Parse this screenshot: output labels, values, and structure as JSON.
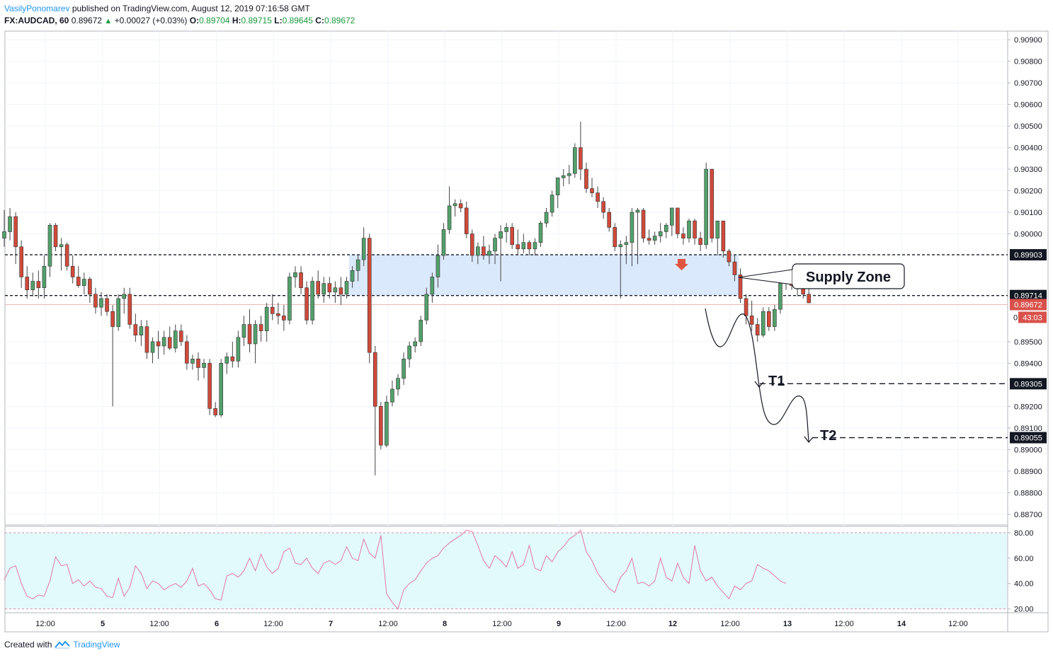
{
  "header": {
    "author": "VasilyPonomarev",
    "published": "published on TradingView.com, August 12, 2019 07:16:58 GMT",
    "symbol": "FX:AUDCAD, 60",
    "last": "0.89672",
    "change": "+0.00027 (+0.03%)",
    "o_label": "O:",
    "o": "0.89704",
    "h_label": "H:",
    "h": "0.89715",
    "l_label": "L:",
    "l": "0.89645",
    "c_label": "C:",
    "c": "0.89672"
  },
  "footer": {
    "created": "Created with",
    "brand": "TradingView"
  },
  "colors": {
    "up": "#53a06b",
    "down": "#d04a3b",
    "zone": "#dbe9fd",
    "rsi_bg": "#e3fafb",
    "rsi_line": "#e07aa0",
    "accent": "#2196f3"
  },
  "chart_data": [
    {
      "type": "candlestick",
      "symbol": "FX:AUDCAD",
      "interval": "60",
      "ylim": [
        0.8865,
        0.9094
      ],
      "y_ticks": [
        "0.90900",
        "0.90800",
        "0.90700",
        "0.90600",
        "0.90500",
        "0.90400",
        "0.90300",
        "0.90200",
        "0.90100",
        "0.90000",
        "0.89500",
        "0.89400",
        "0.89200",
        "0.89100",
        "0.89000",
        "0.88900",
        "0.88800",
        "0.88700"
      ],
      "x_ticks": [
        "12:00",
        "5",
        "12:00",
        "6",
        "12:00",
        "7",
        "12:00",
        "8",
        "12:00",
        "9",
        "12:00",
        "12",
        "12:00",
        "13",
        "12:00",
        "14",
        "12:00"
      ],
      "price_labels": [
        {
          "value": "0.89903",
          "style": "black"
        },
        {
          "value": "0.89714",
          "style": "black"
        },
        {
          "value": "0.89672",
          "style": "red"
        },
        {
          "value": "43:03",
          "style": "red",
          "prefix": "0"
        },
        {
          "value": "0.89305",
          "style": "black"
        },
        {
          "value": "0.89055",
          "style": "black"
        }
      ],
      "levels": [
        0.89903,
        0.89714,
        0.89305,
        0.89055
      ],
      "supply_zone": {
        "from": 0.89714,
        "to": 0.89903
      },
      "annotations": [
        "Supply Zone",
        "T1",
        "T2"
      ],
      "series": [
        {
          "o": 0.8998,
          "h": 0.9011,
          "l": 0.8994,
          "c": 0.9001
        },
        {
          "o": 0.9001,
          "h": 0.9012,
          "l": 0.8997,
          "c": 0.9008
        },
        {
          "o": 0.9008,
          "h": 0.901,
          "l": 0.8986,
          "c": 0.8994
        },
        {
          "o": 0.8994,
          "h": 0.8997,
          "l": 0.8975,
          "c": 0.898
        },
        {
          "o": 0.898,
          "h": 0.8985,
          "l": 0.897,
          "c": 0.8974
        },
        {
          "o": 0.8974,
          "h": 0.8982,
          "l": 0.8971,
          "c": 0.8978
        },
        {
          "o": 0.8978,
          "h": 0.8983,
          "l": 0.897,
          "c": 0.8975
        },
        {
          "o": 0.8975,
          "h": 0.899,
          "l": 0.897,
          "c": 0.8985
        },
        {
          "o": 0.8985,
          "h": 0.9005,
          "l": 0.898,
          "c": 0.9004
        },
        {
          "o": 0.9004,
          "h": 0.9005,
          "l": 0.8992,
          "c": 0.8994
        },
        {
          "o": 0.8994,
          "h": 0.8998,
          "l": 0.8983,
          "c": 0.8995
        },
        {
          "o": 0.8995,
          "h": 0.8996,
          "l": 0.8983,
          "c": 0.8985
        },
        {
          "o": 0.8985,
          "h": 0.899,
          "l": 0.8977,
          "c": 0.898
        },
        {
          "o": 0.898,
          "h": 0.8985,
          "l": 0.8975,
          "c": 0.8976
        },
        {
          "o": 0.8976,
          "h": 0.8982,
          "l": 0.8972,
          "c": 0.8979
        },
        {
          "o": 0.8979,
          "h": 0.898,
          "l": 0.8968,
          "c": 0.8972
        },
        {
          "o": 0.8972,
          "h": 0.8975,
          "l": 0.8963,
          "c": 0.8966
        },
        {
          "o": 0.8966,
          "h": 0.8973,
          "l": 0.8962,
          "c": 0.897
        },
        {
          "o": 0.897,
          "h": 0.8972,
          "l": 0.8962,
          "c": 0.8964
        },
        {
          "o": 0.8964,
          "h": 0.8967,
          "l": 0.892,
          "c": 0.8957
        },
        {
          "o": 0.8957,
          "h": 0.8972,
          "l": 0.8955,
          "c": 0.897
        },
        {
          "o": 0.897,
          "h": 0.8975,
          "l": 0.8963,
          "c": 0.8972
        },
        {
          "o": 0.8972,
          "h": 0.8975,
          "l": 0.8956,
          "c": 0.8958
        },
        {
          "o": 0.8958,
          "h": 0.8963,
          "l": 0.895,
          "c": 0.8953
        },
        {
          "o": 0.8953,
          "h": 0.896,
          "l": 0.8948,
          "c": 0.8957
        },
        {
          "o": 0.8957,
          "h": 0.896,
          "l": 0.8942,
          "c": 0.8945
        },
        {
          "o": 0.8945,
          "h": 0.8952,
          "l": 0.894,
          "c": 0.895
        },
        {
          "o": 0.895,
          "h": 0.8955,
          "l": 0.8942,
          "c": 0.8948
        },
        {
          "o": 0.8948,
          "h": 0.8955,
          "l": 0.8944,
          "c": 0.8952
        },
        {
          "o": 0.8952,
          "h": 0.8957,
          "l": 0.8946,
          "c": 0.8947
        },
        {
          "o": 0.8947,
          "h": 0.8958,
          "l": 0.8945,
          "c": 0.8955
        },
        {
          "o": 0.8955,
          "h": 0.8958,
          "l": 0.8948,
          "c": 0.895
        },
        {
          "o": 0.895,
          "h": 0.8953,
          "l": 0.8937,
          "c": 0.894
        },
        {
          "o": 0.894,
          "h": 0.8944,
          "l": 0.8937,
          "c": 0.8942
        },
        {
          "o": 0.8942,
          "h": 0.8945,
          "l": 0.8932,
          "c": 0.8938
        },
        {
          "o": 0.8938,
          "h": 0.8942,
          "l": 0.8933,
          "c": 0.894
        },
        {
          "o": 0.894,
          "h": 0.8942,
          "l": 0.8916,
          "c": 0.8919
        },
        {
          "o": 0.8919,
          "h": 0.8922,
          "l": 0.8915,
          "c": 0.8916
        },
        {
          "o": 0.8916,
          "h": 0.8942,
          "l": 0.8915,
          "c": 0.894
        },
        {
          "o": 0.894,
          "h": 0.8945,
          "l": 0.8935,
          "c": 0.8943
        },
        {
          "o": 0.8943,
          "h": 0.895,
          "l": 0.8938,
          "c": 0.8941
        },
        {
          "o": 0.8941,
          "h": 0.8955,
          "l": 0.8938,
          "c": 0.8952
        },
        {
          "o": 0.8952,
          "h": 0.8962,
          "l": 0.8948,
          "c": 0.8958
        },
        {
          "o": 0.8958,
          "h": 0.8965,
          "l": 0.8945,
          "c": 0.8949
        },
        {
          "o": 0.8949,
          "h": 0.896,
          "l": 0.894,
          "c": 0.8958
        },
        {
          "o": 0.8958,
          "h": 0.8962,
          "l": 0.895,
          "c": 0.8955
        },
        {
          "o": 0.8955,
          "h": 0.8968,
          "l": 0.895,
          "c": 0.8966
        },
        {
          "o": 0.8966,
          "h": 0.8972,
          "l": 0.896,
          "c": 0.8963
        },
        {
          "o": 0.8963,
          "h": 0.8968,
          "l": 0.8958,
          "c": 0.8962
        },
        {
          "o": 0.8962,
          "h": 0.8967,
          "l": 0.8955,
          "c": 0.896
        },
        {
          "o": 0.896,
          "h": 0.8982,
          "l": 0.8958,
          "c": 0.898
        },
        {
          "o": 0.898,
          "h": 0.8985,
          "l": 0.8975,
          "c": 0.8982
        },
        {
          "o": 0.8982,
          "h": 0.8985,
          "l": 0.8972,
          "c": 0.8975
        },
        {
          "o": 0.8975,
          "h": 0.8978,
          "l": 0.8958,
          "c": 0.896
        },
        {
          "o": 0.896,
          "h": 0.898,
          "l": 0.8958,
          "c": 0.8978
        },
        {
          "o": 0.8978,
          "h": 0.8983,
          "l": 0.897,
          "c": 0.8972
        },
        {
          "o": 0.8972,
          "h": 0.898,
          "l": 0.8968,
          "c": 0.8977
        },
        {
          "o": 0.8977,
          "h": 0.898,
          "l": 0.897,
          "c": 0.8973
        },
        {
          "o": 0.8973,
          "h": 0.8978,
          "l": 0.8968,
          "c": 0.8975
        },
        {
          "o": 0.8975,
          "h": 0.898,
          "l": 0.8967,
          "c": 0.8972
        },
        {
          "o": 0.8972,
          "h": 0.898,
          "l": 0.897,
          "c": 0.8978
        },
        {
          "o": 0.8978,
          "h": 0.8985,
          "l": 0.8975,
          "c": 0.8983
        },
        {
          "o": 0.8983,
          "h": 0.899,
          "l": 0.8978,
          "c": 0.8988
        },
        {
          "o": 0.8988,
          "h": 0.9003,
          "l": 0.8985,
          "c": 0.8998
        },
        {
          "o": 0.8998,
          "h": 0.9,
          "l": 0.894,
          "c": 0.8945
        },
        {
          "o": 0.8945,
          "h": 0.8948,
          "l": 0.8888,
          "c": 0.892
        },
        {
          "o": 0.892,
          "h": 0.8922,
          "l": 0.89,
          "c": 0.8902
        },
        {
          "o": 0.8902,
          "h": 0.8925,
          "l": 0.8901,
          "c": 0.8922
        },
        {
          "o": 0.8922,
          "h": 0.8932,
          "l": 0.892,
          "c": 0.8928
        },
        {
          "o": 0.8928,
          "h": 0.8935,
          "l": 0.8925,
          "c": 0.8933
        },
        {
          "o": 0.8933,
          "h": 0.8945,
          "l": 0.893,
          "c": 0.8942
        },
        {
          "o": 0.8942,
          "h": 0.895,
          "l": 0.8938,
          "c": 0.8948
        },
        {
          "o": 0.8948,
          "h": 0.8952,
          "l": 0.8945,
          "c": 0.895
        },
        {
          "o": 0.895,
          "h": 0.8962,
          "l": 0.8948,
          "c": 0.896
        },
        {
          "o": 0.896,
          "h": 0.8975,
          "l": 0.8958,
          "c": 0.8972
        },
        {
          "o": 0.8972,
          "h": 0.8982,
          "l": 0.8968,
          "c": 0.898
        },
        {
          "o": 0.898,
          "h": 0.8995,
          "l": 0.8975,
          "c": 0.899
        },
        {
          "o": 0.899,
          "h": 0.9005,
          "l": 0.8988,
          "c": 0.9002
        },
        {
          "o": 0.9002,
          "h": 0.9022,
          "l": 0.9,
          "c": 0.9013
        },
        {
          "o": 0.9013,
          "h": 0.9016,
          "l": 0.9008,
          "c": 0.9014
        },
        {
          "o": 0.9014,
          "h": 0.9016,
          "l": 0.901,
          "c": 0.9012
        },
        {
          "o": 0.9012,
          "h": 0.9015,
          "l": 0.8998,
          "c": 0.9
        },
        {
          "o": 0.9,
          "h": 0.9002,
          "l": 0.8987,
          "c": 0.899
        },
        {
          "o": 0.899,
          "h": 0.8996,
          "l": 0.8986,
          "c": 0.8994
        },
        {
          "o": 0.8994,
          "h": 0.8999,
          "l": 0.8988,
          "c": 0.899
        },
        {
          "o": 0.899,
          "h": 0.8995,
          "l": 0.8986,
          "c": 0.8992
        },
        {
          "o": 0.8992,
          "h": 0.9,
          "l": 0.8986,
          "c": 0.8998
        },
        {
          "o": 0.8998,
          "h": 0.9004,
          "l": 0.8978,
          "c": 0.9001
        },
        {
          "o": 0.9001,
          "h": 0.9005,
          "l": 0.8996,
          "c": 0.9003
        },
        {
          "o": 0.9003,
          "h": 0.9005,
          "l": 0.8993,
          "c": 0.8995
        },
        {
          "o": 0.8995,
          "h": 0.9002,
          "l": 0.899,
          "c": 0.8993
        },
        {
          "o": 0.8993,
          "h": 0.9,
          "l": 0.8991,
          "c": 0.8996
        },
        {
          "o": 0.8996,
          "h": 0.8997,
          "l": 0.899,
          "c": 0.8993
        },
        {
          "o": 0.8993,
          "h": 0.8998,
          "l": 0.899,
          "c": 0.8996
        },
        {
          "o": 0.8996,
          "h": 0.9006,
          "l": 0.8994,
          "c": 0.9005
        },
        {
          "o": 0.9005,
          "h": 0.9012,
          "l": 0.9003,
          "c": 0.901
        },
        {
          "o": 0.901,
          "h": 0.902,
          "l": 0.9008,
          "c": 0.9018
        },
        {
          "o": 0.9018,
          "h": 0.9025,
          "l": 0.9012,
          "c": 0.9026
        },
        {
          "o": 0.9026,
          "h": 0.903,
          "l": 0.9022,
          "c": 0.9027
        },
        {
          "o": 0.9027,
          "h": 0.9032,
          "l": 0.9023,
          "c": 0.9028
        },
        {
          "o": 0.9028,
          "h": 0.9042,
          "l": 0.9026,
          "c": 0.904
        },
        {
          "o": 0.904,
          "h": 0.9052,
          "l": 0.9025,
          "c": 0.903
        },
        {
          "o": 0.903,
          "h": 0.9033,
          "l": 0.9019,
          "c": 0.9021
        },
        {
          "o": 0.9021,
          "h": 0.9026,
          "l": 0.9017,
          "c": 0.9019
        },
        {
          "o": 0.9019,
          "h": 0.9022,
          "l": 0.9012,
          "c": 0.9015
        },
        {
          "o": 0.9015,
          "h": 0.9017,
          "l": 0.9007,
          "c": 0.901
        },
        {
          "o": 0.901,
          "h": 0.9012,
          "l": 0.9001,
          "c": 0.9003
        },
        {
          "o": 0.9003,
          "h": 0.9005,
          "l": 0.8992,
          "c": 0.8994
        },
        {
          "o": 0.8994,
          "h": 0.8997,
          "l": 0.897,
          "c": 0.8995
        },
        {
          "o": 0.8995,
          "h": 0.8999,
          "l": 0.8986,
          "c": 0.8996
        },
        {
          "o": 0.8996,
          "h": 0.9012,
          "l": 0.8985,
          "c": 0.901
        },
        {
          "o": 0.901,
          "h": 0.9012,
          "l": 0.8986,
          "c": 0.9011
        },
        {
          "o": 0.9011,
          "h": 0.9012,
          "l": 0.8996,
          "c": 0.8998
        },
        {
          "o": 0.8998,
          "h": 0.9002,
          "l": 0.8995,
          "c": 0.8997
        },
        {
          "o": 0.8997,
          "h": 0.9001,
          "l": 0.8995,
          "c": 0.8999
        },
        {
          "o": 0.8999,
          "h": 0.9005,
          "l": 0.8996,
          "c": 0.9001
        },
        {
          "o": 0.9001,
          "h": 0.9005,
          "l": 0.8998,
          "c": 0.9004
        },
        {
          "o": 0.9004,
          "h": 0.9012,
          "l": 0.8999,
          "c": 0.9012
        },
        {
          "o": 0.9012,
          "h": 0.9012,
          "l": 0.8998,
          "c": 0.9
        },
        {
          "o": 0.9,
          "h": 0.9003,
          "l": 0.8995,
          "c": 0.8998
        },
        {
          "o": 0.8998,
          "h": 0.9007,
          "l": 0.8996,
          "c": 0.9006
        },
        {
          "o": 0.9006,
          "h": 0.9007,
          "l": 0.8995,
          "c": 0.8998
        },
        {
          "o": 0.8998,
          "h": 0.9001,
          "l": 0.8992,
          "c": 0.8995
        },
        {
          "o": 0.8995,
          "h": 0.9033,
          "l": 0.8993,
          "c": 0.903
        },
        {
          "o": 0.903,
          "h": 0.903,
          "l": 0.8996,
          "c": 0.8998
        },
        {
          "o": 0.8998,
          "h": 0.9006,
          "l": 0.899,
          "c": 0.9006
        },
        {
          "o": 0.9006,
          "h": 0.9006,
          "l": 0.8989,
          "c": 0.8992
        },
        {
          "o": 0.8992,
          "h": 0.8993,
          "l": 0.8985,
          "c": 0.8987
        },
        {
          "o": 0.8987,
          "h": 0.899,
          "l": 0.8978,
          "c": 0.8981
        },
        {
          "o": 0.8981,
          "h": 0.8984,
          "l": 0.8968,
          "c": 0.897
        },
        {
          "o": 0.897,
          "h": 0.8972,
          "l": 0.8958,
          "c": 0.8962
        },
        {
          "o": 0.8962,
          "h": 0.8969,
          "l": 0.8955,
          "c": 0.8958
        },
        {
          "o": 0.8958,
          "h": 0.8961,
          "l": 0.895,
          "c": 0.8953
        },
        {
          "o": 0.8953,
          "h": 0.8966,
          "l": 0.8952,
          "c": 0.8964
        },
        {
          "o": 0.8964,
          "h": 0.8966,
          "l": 0.8955,
          "c": 0.8957
        },
        {
          "o": 0.8957,
          "h": 0.8967,
          "l": 0.8955,
          "c": 0.8965
        },
        {
          "o": 0.8965,
          "h": 0.8979,
          "l": 0.8963,
          "c": 0.8977
        },
        {
          "o": 0.8977,
          "h": 0.8981,
          "l": 0.8974,
          "c": 0.8979
        },
        {
          "o": 0.8979,
          "h": 0.898,
          "l": 0.8974,
          "c": 0.8976
        },
        {
          "o": 0.8976,
          "h": 0.8978,
          "l": 0.8971,
          "c": 0.8975
        },
        {
          "o": 0.8975,
          "h": 0.8977,
          "l": 0.897,
          "c": 0.8972
        },
        {
          "o": 0.8972,
          "h": 0.8975,
          "l": 0.8968,
          "c": 0.8968
        }
      ]
    },
    {
      "type": "line",
      "name": "RSI",
      "ylim": [
        17,
        85
      ],
      "y_ticks": [
        "80.00",
        "60.00",
        "40.00",
        "20.00"
      ],
      "bands": [
        80,
        20
      ],
      "values": [
        43,
        52,
        54,
        40,
        30,
        28,
        31,
        30,
        42,
        61,
        54,
        55,
        40,
        43,
        38,
        42,
        37,
        36,
        30,
        29,
        44,
        30,
        37,
        54,
        48,
        36,
        42,
        40,
        35,
        38,
        40,
        37,
        42,
        52,
        38,
        40,
        35,
        28,
        27,
        46,
        48,
        45,
        50,
        60,
        50,
        63,
        53,
        48,
        52,
        65,
        68,
        56,
        55,
        60,
        52,
        48,
        56,
        58,
        55,
        58,
        69,
        60,
        58,
        75,
        64,
        60,
        78,
        32,
        25,
        20,
        35,
        40,
        43,
        50,
        56,
        60,
        62,
        68,
        72,
        75,
        78,
        82,
        81,
        70,
        58,
        52,
        62,
        58,
        53,
        65,
        52,
        55,
        70,
        52,
        50,
        62,
        57,
        65,
        69,
        75,
        78,
        82,
        65,
        58,
        48,
        42,
        36,
        33,
        45,
        50,
        60,
        40,
        41,
        38,
        42,
        60,
        45,
        42,
        56,
        45,
        40,
        70,
        50,
        42,
        45,
        38,
        33,
        28,
        38,
        35,
        40,
        42,
        55,
        52,
        50,
        46,
        42,
        40
      ]
    }
  ]
}
